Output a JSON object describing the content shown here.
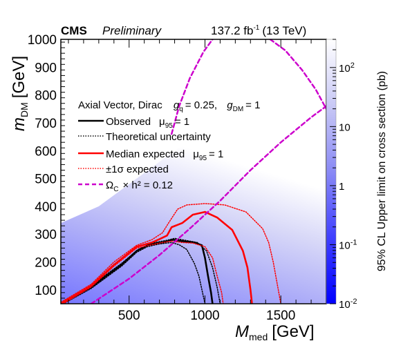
{
  "header": {
    "experiment": "CMS",
    "status": "Preliminary",
    "lumi_value": "137.2 fb",
    "lumi_exp": "-1",
    "lumi_energy": "(13 TeV)"
  },
  "legend": {
    "title_model": "Axial Vector, Dirac",
    "title_couplings": "g",
    "title_gq_sub": "q",
    "title_gq_val": "= 0.25,",
    "title_gdm": "g",
    "title_gdm_sub": "DM",
    "title_gdm_val": "= 1",
    "entries": [
      {
        "label": "Observed",
        "mu_text": "μ",
        "mu_sub": "95",
        "mu_val": "= 1",
        "color": "#000000",
        "style": "solid"
      },
      {
        "label": "Theoretical uncertainty",
        "color": "#000000",
        "style": "dotted"
      },
      {
        "label": "Median expected",
        "mu_text": "μ",
        "mu_sub": "95",
        "mu_val": "= 1",
        "color": "#ff0000",
        "style": "solid"
      },
      {
        "label": "±1σ expected",
        "color": "#ff0000",
        "style": "dotted"
      },
      {
        "label": "Ω",
        "omega_sub": "C",
        "omega_rest": "× h² = 0.12",
        "color": "#cc00cc",
        "style": "dashed"
      }
    ]
  },
  "chart_data": {
    "type": "heatmap",
    "xlabel_main": "M",
    "xlabel_sub": "med",
    "xlabel_unit": "[GeV]",
    "ylabel_main": "m",
    "ylabel_sub": "DM",
    "ylabel_unit": "[GeV]",
    "zlabel": "95% CL Upper limit on cross section (pb)",
    "xlim": [
      50,
      1800
    ],
    "ylim": [
      50,
      1000
    ],
    "zlim": [
      0.01,
      300
    ],
    "zscale": "log",
    "x_ticks": [
      500,
      1000,
      1500
    ],
    "y_ticks": [
      100,
      200,
      300,
      400,
      500,
      600,
      700,
      800,
      900,
      1000
    ],
    "z_ticks": [
      {
        "value": 0.01,
        "base": "10",
        "exp": "-2"
      },
      {
        "value": 0.1,
        "base": "10",
        "exp": "-1"
      },
      {
        "value": 1,
        "base": "1",
        "exp": ""
      },
      {
        "value": 10,
        "base": "10",
        "exp": ""
      },
      {
        "value": 100,
        "base": "10",
        "exp": "2"
      }
    ],
    "colormap": [
      "#0000ff",
      "#3f3fff",
      "#8a8af5",
      "#c8c8f5",
      "#ffffff"
    ],
    "contours": {
      "observed": {
        "color": "#000000",
        "style": "solid",
        "points": [
          [
            50,
            50
          ],
          [
            250,
            110
          ],
          [
            450,
            190
          ],
          [
            550,
            240
          ],
          [
            630,
            262
          ],
          [
            720,
            270
          ],
          [
            790,
            280
          ],
          [
            850,
            275
          ],
          [
            930,
            270
          ],
          [
            980,
            260
          ],
          [
            1000,
            215
          ],
          [
            1020,
            150
          ],
          [
            1040,
            90
          ],
          [
            1050,
            50
          ]
        ]
      },
      "observed_theory_up": {
        "color": "#000000",
        "style": "dotted",
        "points": [
          [
            50,
            55
          ],
          [
            250,
            115
          ],
          [
            450,
            195
          ],
          [
            560,
            245
          ],
          [
            650,
            268
          ],
          [
            750,
            278
          ],
          [
            800,
            285
          ],
          [
            870,
            278
          ],
          [
            950,
            270
          ],
          [
            1010,
            240
          ],
          [
            1050,
            180
          ],
          [
            1080,
            110
          ],
          [
            1100,
            50
          ]
        ]
      },
      "observed_theory_down": {
        "color": "#000000",
        "style": "dotted",
        "points": [
          [
            50,
            45
          ],
          [
            250,
            105
          ],
          [
            450,
            185
          ],
          [
            550,
            235
          ],
          [
            620,
            255
          ],
          [
            700,
            265
          ],
          [
            780,
            270
          ],
          [
            830,
            262
          ],
          [
            880,
            245
          ],
          [
            930,
            195
          ],
          [
            960,
            150
          ],
          [
            980,
            100
          ],
          [
            1000,
            50
          ]
        ]
      },
      "expected": {
        "color": "#ff0000",
        "style": "solid",
        "points": [
          [
            50,
            50
          ],
          [
            250,
            115
          ],
          [
            400,
            190
          ],
          [
            550,
            255
          ],
          [
            650,
            270
          ],
          [
            700,
            282
          ],
          [
            750,
            295
          ],
          [
            780,
            325
          ],
          [
            850,
            340
          ],
          [
            920,
            370
          ],
          [
            1000,
            380
          ],
          [
            1080,
            360
          ],
          [
            1180,
            315
          ],
          [
            1250,
            240
          ],
          [
            1280,
            180
          ],
          [
            1300,
            100
          ],
          [
            1310,
            50
          ]
        ]
      },
      "expected_up": {
        "color": "#ff0000",
        "style": "dotted",
        "points": [
          [
            50,
            55
          ],
          [
            250,
            120
          ],
          [
            400,
            200
          ],
          [
            550,
            260
          ],
          [
            650,
            280
          ],
          [
            720,
            305
          ],
          [
            760,
            340
          ],
          [
            820,
            390
          ],
          [
            880,
            405
          ],
          [
            1000,
            410
          ],
          [
            1130,
            405
          ],
          [
            1270,
            380
          ],
          [
            1380,
            320
          ],
          [
            1420,
            270
          ],
          [
            1450,
            200
          ],
          [
            1480,
            110
          ],
          [
            1500,
            50
          ]
        ]
      },
      "expected_down": {
        "color": "#ff0000",
        "style": "dotted",
        "points": [
          [
            50,
            45
          ],
          [
            250,
            110
          ],
          [
            400,
            185
          ],
          [
            550,
            250
          ],
          [
            650,
            262
          ],
          [
            720,
            270
          ],
          [
            780,
            275
          ],
          [
            850,
            270
          ],
          [
            920,
            268
          ],
          [
            1000,
            255
          ],
          [
            1050,
            215
          ],
          [
            1080,
            150
          ],
          [
            1110,
            90
          ],
          [
            1120,
            50
          ]
        ]
      },
      "relic_lower": {
        "color": "#cc00cc",
        "style": "dashed",
        "points": [
          [
            250,
            50
          ],
          [
            500,
            140
          ],
          [
            700,
            225
          ],
          [
            900,
            320
          ],
          [
            1100,
            420
          ],
          [
            1300,
            530
          ],
          [
            1500,
            630
          ],
          [
            1700,
            720
          ],
          [
            1800,
            760
          ]
        ]
      },
      "relic_upper": {
        "color": "#cc00cc",
        "style": "dashed",
        "points": [
          [
            780,
            660
          ],
          [
            830,
            760
          ],
          [
            900,
            860
          ],
          [
            990,
            955
          ],
          [
            1050,
            1000
          ]
        ]
      },
      "relic_upper_right": {
        "color": "#cc00cc",
        "style": "dashed",
        "points": [
          [
            1430,
            1000
          ],
          [
            1530,
            960
          ],
          [
            1640,
            890
          ],
          [
            1730,
            820
          ],
          [
            1800,
            750
          ]
        ]
      }
    }
  }
}
